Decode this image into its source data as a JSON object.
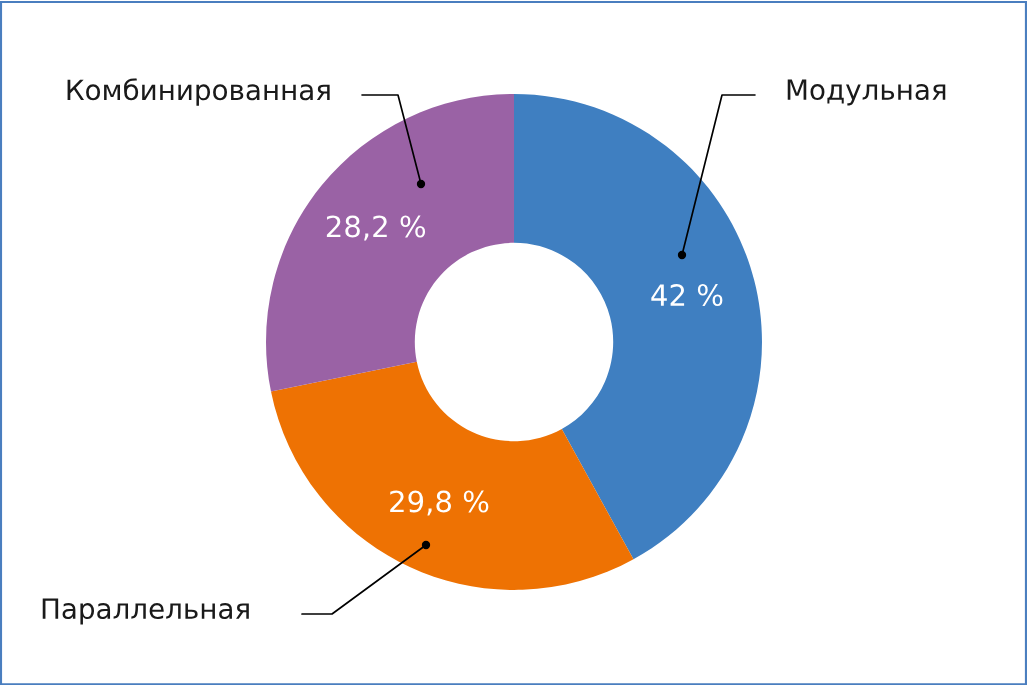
{
  "chart_data": {
    "type": "donut",
    "categories": [
      "Модульная",
      "Параллельная",
      "Комбинированная"
    ],
    "values": [
      42,
      29.8,
      28.2
    ],
    "value_labels": [
      "42 %",
      "29,8 %",
      "28,2 %"
    ],
    "colors": [
      "#3f7fc1",
      "#ee7203",
      "#9a62a5"
    ],
    "legend": false
  }
}
